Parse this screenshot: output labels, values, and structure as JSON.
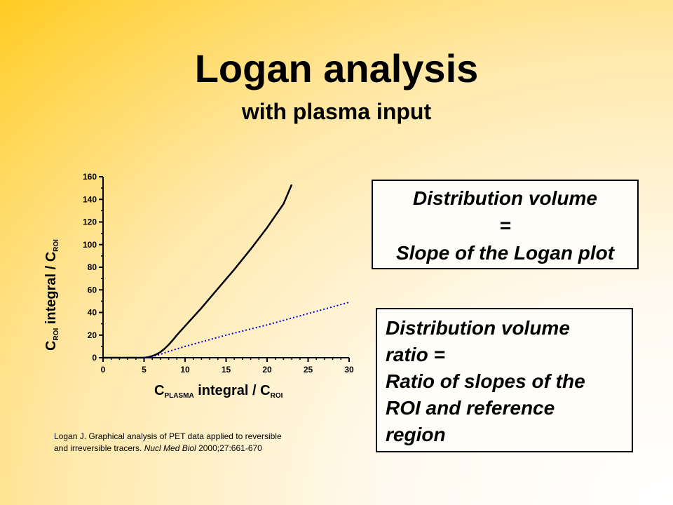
{
  "slide": {
    "title": "Logan analysis",
    "subtitle": "with plasma input"
  },
  "chart_data": {
    "type": "line",
    "xlabel_main": "C",
    "xlabel_sub1": "PLASMA",
    "xlabel_mid": " integral / C",
    "xlabel_sub2": "ROI",
    "ylabel_main": "C",
    "ylabel_sub1": "ROI",
    "ylabel_mid": " integral / C",
    "ylabel_sub2": "ROI",
    "xlim": [
      0,
      30
    ],
    "ylim": [
      0,
      160
    ],
    "xticks": [
      0,
      5,
      10,
      15,
      20,
      25,
      30
    ],
    "yticks": [
      0,
      20,
      40,
      60,
      80,
      100,
      120,
      140,
      160
    ],
    "series": [
      {
        "style": "solid",
        "color": "#000000",
        "x": [
          0,
          5,
          5.5,
          6,
          6.5,
          7,
          7.5,
          8,
          8.5,
          9,
          10,
          12,
          14,
          16,
          18,
          20,
          22,
          23
        ],
        "y": [
          0,
          0,
          0.5,
          1.5,
          3,
          5,
          8,
          11.5,
          15.5,
          20,
          28,
          44,
          61,
          78,
          96,
          115,
          136,
          153
        ]
      },
      {
        "style": "dotted",
        "color": "#0000cc",
        "x": [
          5,
          6,
          7,
          8,
          10,
          15,
          20,
          25,
          30
        ],
        "y": [
          0,
          1,
          3,
          5.5,
          10,
          20,
          29,
          39,
          49
        ]
      }
    ]
  },
  "citation": {
    "line1": "Logan J. Graphical analysis of PET data applied to reversible",
    "line2_pre": "and irreversible tracers. ",
    "journal": "Nucl Med Biol",
    "line2_post": " 2000;27:661-670"
  },
  "box1": {
    "line1": "Distribution volume",
    "line2": "=",
    "line3": "Slope of the Logan plot"
  },
  "box2": {
    "line1": "Distribution volume",
    "line2": "ratio =",
    "line3": "Ratio of slopes of the",
    "line4": "ROI and reference",
    "line5": "region"
  }
}
